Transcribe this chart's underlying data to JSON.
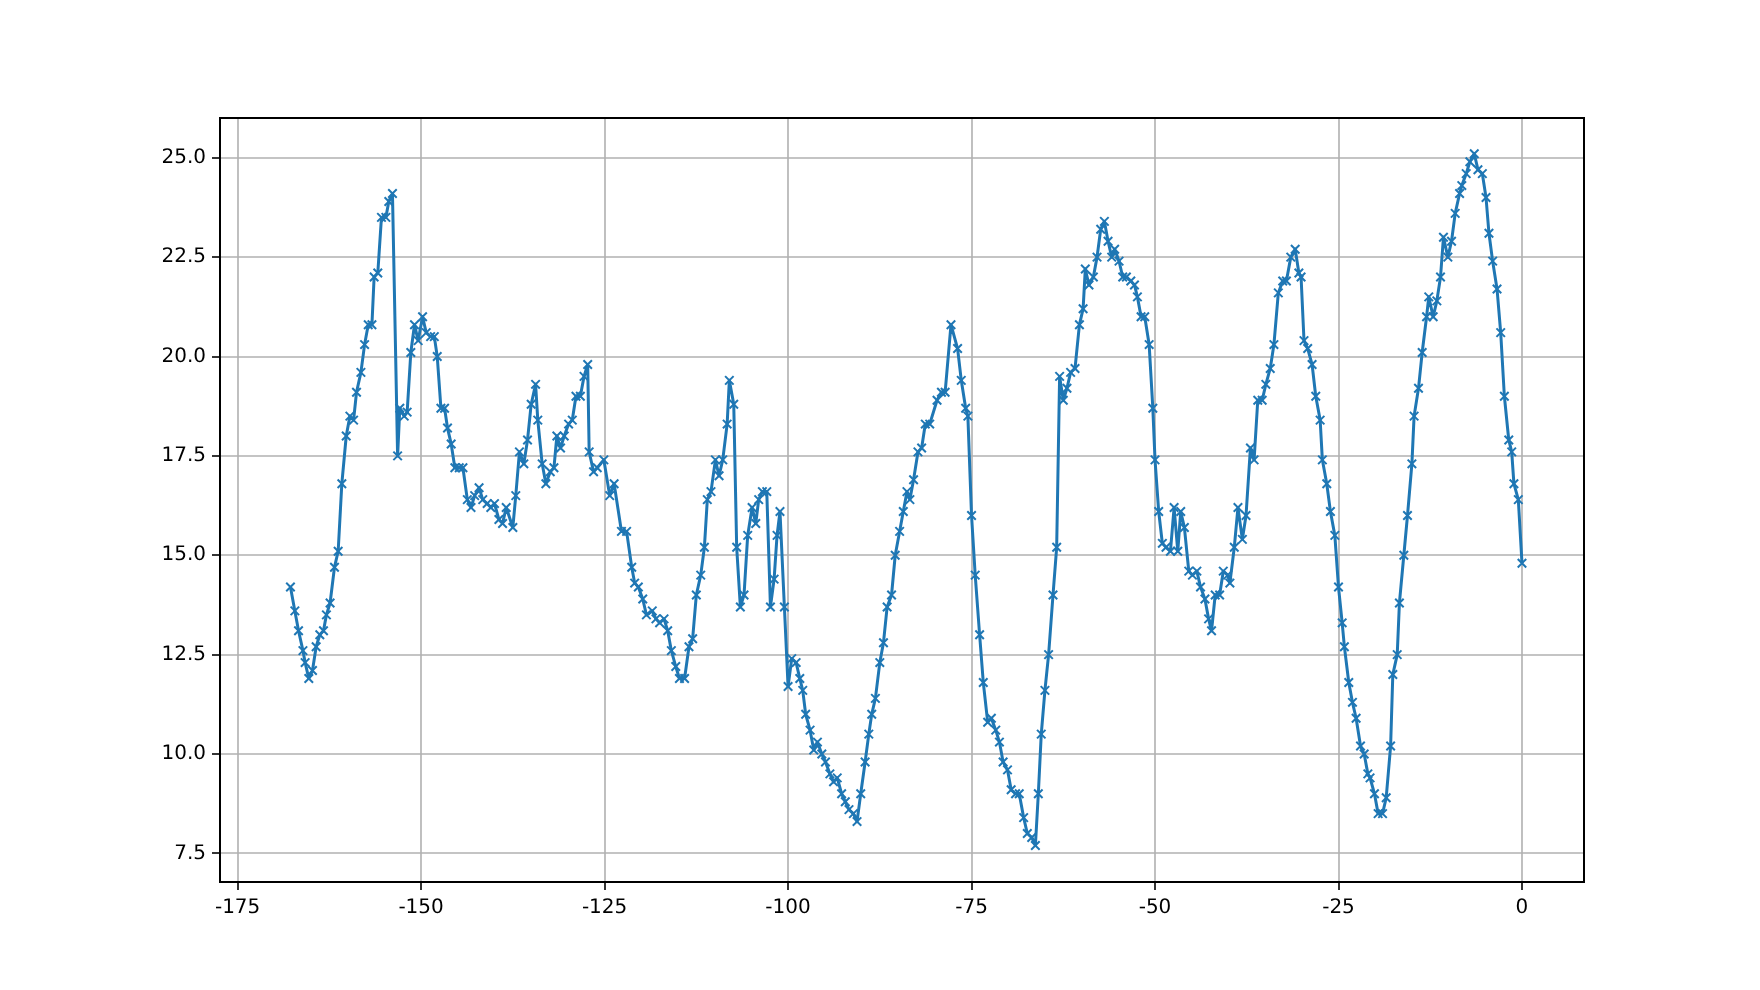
{
  "chart_data": {
    "type": "line",
    "marker": "cross",
    "grid": true,
    "legend": false,
    "xlim": [
      -177.4,
      8.45
    ],
    "ylim": [
      6.78,
      26.0
    ],
    "xticks": [
      -175,
      -150,
      -125,
      -100,
      -75,
      -50,
      -25,
      0
    ],
    "yticks": [
      {
        "value": 7.5,
        "label": "7.5"
      },
      {
        "value": 10,
        "label": "10.0"
      },
      {
        "value": 12.5,
        "label": "12.5"
      },
      {
        "value": 15,
        "label": "15.0"
      },
      {
        "value": 17.5,
        "label": "17.5"
      },
      {
        "value": 20,
        "label": "20.0"
      },
      {
        "value": 22.5,
        "label": "22.5"
      },
      {
        "value": 25,
        "label": "25.0"
      }
    ],
    "series": [
      {
        "color": "#1f77b4",
        "x": [
          -167.8,
          -167.2,
          -166.7,
          -166.1,
          -165.8,
          -165.3,
          -164.8,
          -164.3,
          -163.8,
          -163.3,
          -162.9,
          -162.4,
          -161.8,
          -161.3,
          -160.8,
          -160.2,
          -159.7,
          -159.2,
          -158.8,
          -158.2,
          -157.7,
          -157.2,
          -156.7,
          -156.4,
          -155.9,
          -155.4,
          -154.8,
          -154.4,
          -153.9,
          -153.2,
          -152.9,
          -152.3,
          -151.9,
          -151.4,
          -150.9,
          -150.4,
          -149.8,
          -149.3,
          -148.7,
          -148.2,
          -147.8,
          -147.3,
          -146.8,
          -146.4,
          -145.9,
          -145.4,
          -144.8,
          -144.3,
          -143.7,
          -143.2,
          -142.7,
          -142.1,
          -141.6,
          -141.0,
          -140.5,
          -140.0,
          -139.4,
          -138.9,
          -138.4,
          -137.5,
          -137.1,
          -136.6,
          -136.0,
          -135.5,
          -135.0,
          -134.4,
          -134.1,
          -133.5,
          -133.0,
          -132.4,
          -131.9,
          -131.5,
          -131.0,
          -130.5,
          -129.9,
          -129.4,
          -128.9,
          -128.3,
          -127.8,
          -127.3,
          -127.1,
          -126.5,
          -126.0,
          -125.1,
          -124.3,
          -123.7,
          -122.7,
          -122.0,
          -121.3,
          -120.9,
          -120.4,
          -119.8,
          -119.3,
          -118.5,
          -118.0,
          -117.5,
          -116.9,
          -116.4,
          -115.9,
          -115.3,
          -114.8,
          -114.1,
          -113.5,
          -113.0,
          -112.5,
          -111.9,
          -111.4,
          -111.0,
          -110.5,
          -109.9,
          -109.4,
          -108.9,
          -108.3,
          -108.0,
          -107.4,
          -107.0,
          -106.5,
          -106.0,
          -105.5,
          -104.9,
          -104.4,
          -104.0,
          -103.5,
          -102.9,
          -102.4,
          -101.9,
          -101.5,
          -101.1,
          -100.5,
          -100.0,
          -99.5,
          -98.9,
          -98.4,
          -98.0,
          -97.6,
          -97.0,
          -96.5,
          -96.0,
          -95.4,
          -94.9,
          -94.3,
          -93.8,
          -93.3,
          -92.7,
          -92.2,
          -91.7,
          -91.1,
          -90.6,
          -90.1,
          -89.5,
          -89.0,
          -88.6,
          -88.1,
          -87.5,
          -87.0,
          -86.5,
          -85.9,
          -85.4,
          -84.8,
          -84.3,
          -83.8,
          -83.4,
          -82.9,
          -82.3,
          -81.8,
          -81.3,
          -80.7,
          -79.7,
          -79.1,
          -78.6,
          -77.8,
          -76.9,
          -76.4,
          -75.8,
          -75.5,
          -75.0,
          -74.5,
          -73.9,
          -73.4,
          -72.8,
          -72.3,
          -71.7,
          -71.2,
          -70.7,
          -70.1,
          -69.6,
          -69.0,
          -68.5,
          -67.9,
          -67.4,
          -66.8,
          -66.3,
          -65.9,
          -65.5,
          -65.0,
          -64.5,
          -63.9,
          -63.4,
          -63.0,
          -62.5,
          -62.0,
          -61.5,
          -60.9,
          -60.3,
          -59.8,
          -59.5,
          -59.0,
          -58.4,
          -57.9,
          -57.4,
          -56.9,
          -56.4,
          -55.9,
          -55.5,
          -54.9,
          -54.4,
          -53.9,
          -53.3,
          -52.8,
          -52.4,
          -51.9,
          -51.4,
          -50.8,
          -50.3,
          -50.0,
          -49.5,
          -49.0,
          -48.5,
          -47.9,
          -47.4,
          -46.9,
          -46.5,
          -46.0,
          -45.4,
          -44.9,
          -44.3,
          -43.8,
          -43.2,
          -42.7,
          -42.3,
          -41.8,
          -41.2,
          -40.7,
          -40.1,
          -39.8,
          -39.2,
          -38.7,
          -38.1,
          -37.6,
          -37.0,
          -36.5,
          -36.0,
          -35.4,
          -34.9,
          -34.3,
          -33.8,
          -33.2,
          -32.6,
          -32.1,
          -31.5,
          -30.9,
          -30.4,
          -30.1,
          -29.7,
          -29.2,
          -28.6,
          -28.1,
          -27.5,
          -27.2,
          -26.6,
          -26.1,
          -25.5,
          -25.0,
          -24.5,
          -24.2,
          -23.6,
          -23.1,
          -22.6,
          -22.0,
          -21.5,
          -21.0,
          -20.7,
          -20.1,
          -19.6,
          -19.0,
          -18.5,
          -17.9,
          -17.6,
          -17.0,
          -16.7,
          -16.1,
          -15.6,
          -15.0,
          -14.7,
          -14.1,
          -13.6,
          -13.0,
          -12.7,
          -12.1,
          -11.6,
          -11.1,
          -10.7,
          -10.1,
          -9.6,
          -9.1,
          -8.5,
          -8.2,
          -7.6,
          -7.1,
          -6.5,
          -6.0,
          -5.4,
          -4.9,
          -4.5,
          -4.0,
          -3.4,
          -2.9,
          -2.4,
          -1.8,
          -1.4,
          -1.1,
          -0.5,
          0
        ],
        "values": [
          14.2,
          13.6,
          13.1,
          12.6,
          12.3,
          11.9,
          12.1,
          12.7,
          13.0,
          13.1,
          13.5,
          13.8,
          14.7,
          15.1,
          16.8,
          18.0,
          18.5,
          18.4,
          19.1,
          19.6,
          20.3,
          20.8,
          20.8,
          22.0,
          22.1,
          23.5,
          23.5,
          23.9,
          24.1,
          17.5,
          18.7,
          18.5,
          18.6,
          20.1,
          20.8,
          20.4,
          21.0,
          20.6,
          20.5,
          20.5,
          20.0,
          18.7,
          18.7,
          18.2,
          17.8,
          17.2,
          17.2,
          17.2,
          16.4,
          16.2,
          16.5,
          16.7,
          16.4,
          16.3,
          16.2,
          16.3,
          15.9,
          15.8,
          16.2,
          15.7,
          16.5,
          17.6,
          17.3,
          17.9,
          18.8,
          19.3,
          18.4,
          17.3,
          16.8,
          17.1,
          17.2,
          18.0,
          17.7,
          18.0,
          18.3,
          18.4,
          19.0,
          19.0,
          19.5,
          19.8,
          17.6,
          17.1,
          17.2,
          17.4,
          16.5,
          16.8,
          15.6,
          15.6,
          14.7,
          14.3,
          14.2,
          13.9,
          13.5,
          13.6,
          13.4,
          13.3,
          13.4,
          13.1,
          12.6,
          12.2,
          11.9,
          11.9,
          12.7,
          12.9,
          14.0,
          14.5,
          15.2,
          16.4,
          16.6,
          17.4,
          17.0,
          17.4,
          18.3,
          19.4,
          18.8,
          15.2,
          13.7,
          14.0,
          15.5,
          16.2,
          15.8,
          16.4,
          16.6,
          16.6,
          13.7,
          14.4,
          15.5,
          16.1,
          13.7,
          11.7,
          12.4,
          12.3,
          11.9,
          11.6,
          11.0,
          10.6,
          10.1,
          10.3,
          10.0,
          9.8,
          9.5,
          9.3,
          9.4,
          9.0,
          8.8,
          8.6,
          8.5,
          8.3,
          9.0,
          9.8,
          10.5,
          11.0,
          11.4,
          12.3,
          12.8,
          13.7,
          14.0,
          15.0,
          15.6,
          16.1,
          16.6,
          16.4,
          16.9,
          17.6,
          17.7,
          18.3,
          18.3,
          18.9,
          19.1,
          19.1,
          20.8,
          20.2,
          19.4,
          18.7,
          18.5,
          16.0,
          14.5,
          13.0,
          11.8,
          10.8,
          10.9,
          10.6,
          10.3,
          9.8,
          9.6,
          9.1,
          9.0,
          9.0,
          8.4,
          8.0,
          7.9,
          7.7,
          9.0,
          10.5,
          11.6,
          12.5,
          14.0,
          15.2,
          19.5,
          18.9,
          19.2,
          19.6,
          19.7,
          20.8,
          21.2,
          22.2,
          21.8,
          22.0,
          22.5,
          23.2,
          23.4,
          22.9,
          22.5,
          22.7,
          22.4,
          22.0,
          22.0,
          21.9,
          21.8,
          21.5,
          21.0,
          21.0,
          20.3,
          18.7,
          17.4,
          16.1,
          15.3,
          15.2,
          15.1,
          16.2,
          15.1,
          16.1,
          15.7,
          14.6,
          14.5,
          14.6,
          14.2,
          13.9,
          13.4,
          13.1,
          14.0,
          14.0,
          14.6,
          14.5,
          14.3,
          15.2,
          16.2,
          15.4,
          16.0,
          17.7,
          17.4,
          18.9,
          18.9,
          19.3,
          19.7,
          20.3,
          21.6,
          21.9,
          21.9,
          22.5,
          22.7,
          22.1,
          22.0,
          20.4,
          20.2,
          19.8,
          19.0,
          18.4,
          17.4,
          16.8,
          16.1,
          15.5,
          14.2,
          13.3,
          12.7,
          11.8,
          11.3,
          10.9,
          10.2,
          10.0,
          9.5,
          9.4,
          9.0,
          8.5,
          8.5,
          8.9,
          10.2,
          12.0,
          12.5,
          13.8,
          15.0,
          16.0,
          17.3,
          18.5,
          19.2,
          20.1,
          21.0,
          21.5,
          21.0,
          21.4,
          22.0,
          23.0,
          22.5,
          22.9,
          23.6,
          24.1,
          24.3,
          24.6,
          24.9,
          25.1,
          24.7,
          24.6,
          24.0,
          23.1,
          22.4,
          21.7,
          20.6,
          19.0,
          17.9,
          17.6,
          16.8,
          16.4,
          14.8
        ]
      }
    ]
  }
}
